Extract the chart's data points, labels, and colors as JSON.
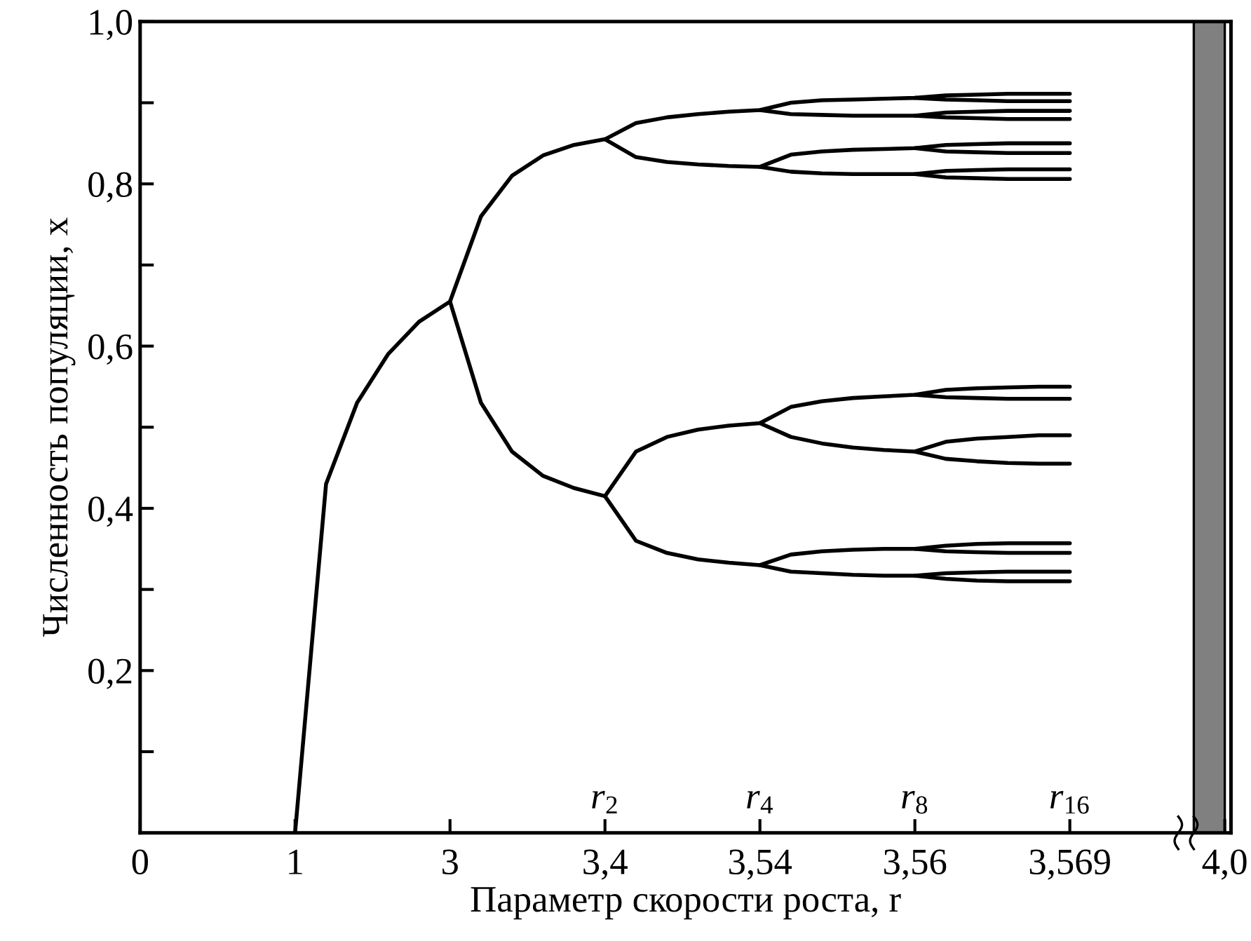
{
  "chart_data": {
    "type": "line",
    "xlabel": "Параметр скорости роста, r",
    "ylabel": "Численность популяции, x",
    "categories": [
      "0",
      null,
      null,
      null,
      null,
      "1",
      null,
      null,
      null,
      null,
      "3",
      null,
      null,
      null,
      null,
      "3,4",
      null,
      null,
      null,
      null,
      "3,54",
      null,
      null,
      null,
      null,
      "3,56",
      null,
      null,
      null,
      null,
      "3,569",
      null,
      null,
      null,
      null,
      "4,0"
    ],
    "ylim": [
      0,
      1.0
    ],
    "yticks": [
      {
        "value": 0.1,
        "label": null
      },
      {
        "value": 0.2,
        "label": "0,2"
      },
      {
        "value": 0.3,
        "label": null
      },
      {
        "value": 0.4,
        "label": "0,4"
      },
      {
        "value": 0.5,
        "label": null
      },
      {
        "value": 0.6,
        "label": "0,6"
      },
      {
        "value": 0.7,
        "label": null
      },
      {
        "value": 0.8,
        "label": "0,8"
      },
      {
        "value": 0.9,
        "label": null
      },
      {
        "value": 1.0,
        "label": "1,0"
      }
    ],
    "grid": false,
    "marker": "none",
    "line_style": "solid",
    "annotations": [
      "r$_{2}$",
      "r$_{4}$",
      "r$_{8}$",
      "r$_{16}$"
    ],
    "series": [
      {
        "color": "#000000",
        "values": [
          null,
          null,
          null,
          null,
          null,
          0,
          0.43,
          0.53,
          0.59,
          0.63,
          0.655,
          0.76,
          0.81,
          0.835,
          0.848,
          0.855,
          0.875,
          0.882,
          0.886,
          0.889,
          0.891,
          0.9,
          0.903,
          0.904,
          0.905,
          0.906,
          0.909,
          0.91,
          0.911,
          0.911,
          0.911,
          null,
          null,
          null,
          null,
          null
        ]
      },
      {
        "color": "#000000",
        "values": [
          null,
          null,
          null,
          null,
          null,
          null,
          null,
          null,
          null,
          null,
          0.655,
          0.53,
          0.47,
          0.44,
          0.425,
          0.415,
          0.47,
          0.488,
          0.497,
          0.502,
          0.505,
          0.525,
          0.532,
          0.536,
          0.538,
          0.54,
          0.546,
          0.548,
          0.549,
          0.55,
          0.55,
          null,
          null,
          null,
          null,
          null
        ]
      },
      {
        "color": "#000000",
        "values": [
          null,
          null,
          null,
          null,
          null,
          null,
          null,
          null,
          null,
          null,
          null,
          null,
          null,
          null,
          null,
          0.855,
          0.833,
          0.827,
          0.824,
          0.822,
          0.821,
          0.836,
          0.84,
          0.842,
          0.843,
          0.844,
          0.848,
          0.849,
          0.85,
          0.85,
          0.85,
          null,
          null,
          null,
          null,
          null
        ]
      },
      {
        "color": "#000000",
        "values": [
          null,
          null,
          null,
          null,
          null,
          null,
          null,
          null,
          null,
          null,
          null,
          null,
          null,
          null,
          null,
          0.415,
          0.36,
          0.345,
          0.337,
          0.333,
          0.33,
          0.343,
          0.347,
          0.349,
          0.35,
          0.35,
          0.354,
          0.356,
          0.357,
          0.357,
          0.357,
          null,
          null,
          null,
          null,
          null
        ]
      },
      {
        "color": "#000000",
        "values": [
          null,
          null,
          null,
          null,
          null,
          null,
          null,
          null,
          null,
          null,
          null,
          null,
          null,
          null,
          null,
          null,
          null,
          null,
          null,
          null,
          0.891,
          0.886,
          0.885,
          0.884,
          0.884,
          0.884,
          0.888,
          0.889,
          0.89,
          0.89,
          0.89,
          null,
          null,
          null,
          null,
          null
        ]
      },
      {
        "color": "#000000",
        "values": [
          null,
          null,
          null,
          null,
          null,
          null,
          null,
          null,
          null,
          null,
          null,
          null,
          null,
          null,
          null,
          null,
          null,
          null,
          null,
          null,
          0.821,
          0.815,
          0.813,
          0.812,
          0.812,
          0.812,
          0.816,
          0.817,
          0.818,
          0.818,
          0.818,
          null,
          null,
          null,
          null,
          null
        ]
      },
      {
        "color": "#000000",
        "values": [
          null,
          null,
          null,
          null,
          null,
          null,
          null,
          null,
          null,
          null,
          null,
          null,
          null,
          null,
          null,
          null,
          null,
          null,
          null,
          null,
          0.505,
          0.488,
          0.48,
          0.475,
          0.472,
          0.47,
          0.482,
          0.486,
          0.488,
          0.49,
          0.49,
          null,
          null,
          null,
          null,
          null
        ]
      },
      {
        "color": "#000000",
        "values": [
          null,
          null,
          null,
          null,
          null,
          null,
          null,
          null,
          null,
          null,
          null,
          null,
          null,
          null,
          null,
          null,
          null,
          null,
          null,
          null,
          0.33,
          0.322,
          0.32,
          0.318,
          0.317,
          0.317,
          0.32,
          0.321,
          0.322,
          0.322,
          0.322,
          null,
          null,
          null,
          null,
          null
        ]
      },
      {
        "color": "#000000",
        "values": [
          null,
          null,
          null,
          null,
          null,
          null,
          null,
          null,
          null,
          null,
          null,
          null,
          null,
          null,
          null,
          null,
          null,
          null,
          null,
          null,
          null,
          null,
          null,
          null,
          null,
          0.906,
          0.904,
          0.903,
          0.902,
          0.902,
          0.902,
          null,
          null,
          null,
          null,
          null
        ]
      },
      {
        "color": "#000000",
        "values": [
          null,
          null,
          null,
          null,
          null,
          null,
          null,
          null,
          null,
          null,
          null,
          null,
          null,
          null,
          null,
          null,
          null,
          null,
          null,
          null,
          null,
          null,
          null,
          null,
          null,
          0.884,
          0.882,
          0.881,
          0.88,
          0.88,
          0.88,
          null,
          null,
          null,
          null,
          null
        ]
      },
      {
        "color": "#000000",
        "values": [
          null,
          null,
          null,
          null,
          null,
          null,
          null,
          null,
          null,
          null,
          null,
          null,
          null,
          null,
          null,
          null,
          null,
          null,
          null,
          null,
          null,
          null,
          null,
          null,
          null,
          0.844,
          0.84,
          0.839,
          0.838,
          0.838,
          0.838,
          null,
          null,
          null,
          null,
          null
        ]
      },
      {
        "color": "#000000",
        "values": [
          null,
          null,
          null,
          null,
          null,
          null,
          null,
          null,
          null,
          null,
          null,
          null,
          null,
          null,
          null,
          null,
          null,
          null,
          null,
          null,
          null,
          null,
          null,
          null,
          null,
          0.812,
          0.808,
          0.807,
          0.806,
          0.806,
          0.806,
          null,
          null,
          null,
          null,
          null
        ]
      },
      {
        "color": "#000000",
        "values": [
          null,
          null,
          null,
          null,
          null,
          null,
          null,
          null,
          null,
          null,
          null,
          null,
          null,
          null,
          null,
          null,
          null,
          null,
          null,
          null,
          null,
          null,
          null,
          null,
          null,
          0.54,
          0.537,
          0.536,
          0.535,
          0.535,
          0.535,
          null,
          null,
          null,
          null,
          null
        ]
      },
      {
        "color": "#000000",
        "values": [
          null,
          null,
          null,
          null,
          null,
          null,
          null,
          null,
          null,
          null,
          null,
          null,
          null,
          null,
          null,
          null,
          null,
          null,
          null,
          null,
          null,
          null,
          null,
          null,
          null,
          0.47,
          0.461,
          0.458,
          0.456,
          0.455,
          0.455,
          null,
          null,
          null,
          null,
          null
        ]
      },
      {
        "color": "#000000",
        "values": [
          null,
          null,
          null,
          null,
          null,
          null,
          null,
          null,
          null,
          null,
          null,
          null,
          null,
          null,
          null,
          null,
          null,
          null,
          null,
          null,
          null,
          null,
          null,
          null,
          null,
          0.35,
          0.347,
          0.346,
          0.345,
          0.345,
          0.345,
          null,
          null,
          null,
          null,
          null
        ]
      },
      {
        "color": "#000000",
        "values": [
          null,
          null,
          null,
          null,
          null,
          null,
          null,
          null,
          null,
          null,
          null,
          null,
          null,
          null,
          null,
          null,
          null,
          null,
          null,
          null,
          null,
          null,
          null,
          null,
          null,
          0.317,
          0.313,
          0.311,
          0.31,
          0.31,
          0.31,
          null,
          null,
          null,
          null,
          null
        ]
      },
      {
        "type": "area",
        "color": "#808080",
        "values": [
          null,
          null,
          null,
          null,
          null,
          null,
          null,
          null,
          null,
          null,
          null,
          null,
          null,
          null,
          null,
          null,
          null,
          null,
          null,
          null,
          null,
          null,
          null,
          null,
          null,
          null,
          null,
          null,
          null,
          null,
          null,
          null,
          null,
          null,
          1.0,
          1.0
        ]
      }
    ]
  }
}
